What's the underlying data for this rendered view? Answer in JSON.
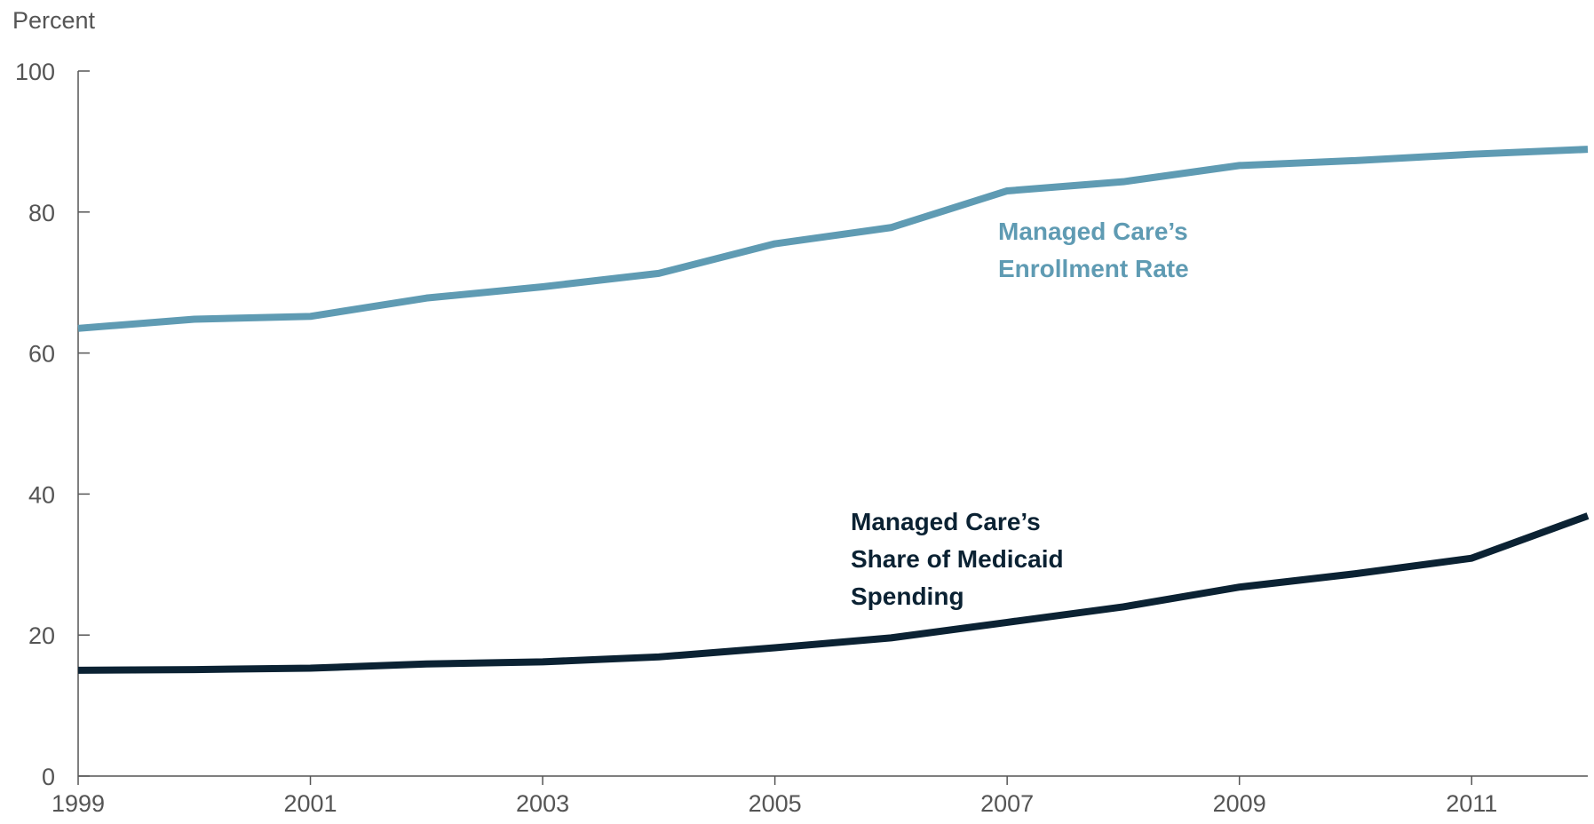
{
  "chart_data": {
    "type": "line",
    "y_label": "Percent",
    "x": [
      1999,
      2000,
      2001,
      2002,
      2003,
      2004,
      2005,
      2006,
      2007,
      2008,
      2009,
      2010,
      2011,
      2012
    ],
    "series": [
      {
        "color": "#5f9bb3",
        "values": [
          63.5,
          64.8,
          65.2,
          67.8,
          69.4,
          71.3,
          75.5,
          77.8,
          83.0,
          84.3,
          86.6,
          87.3,
          88.2,
          88.9
        ]
      },
      {
        "color": "#0b2233",
        "values": [
          15.0,
          15.1,
          15.3,
          15.9,
          16.2,
          16.9,
          18.2,
          19.6,
          21.8,
          24.0,
          26.8,
          28.7,
          30.9,
          36.9
        ]
      }
    ],
    "annotations": [
      {
        "color": "#5f9bb3",
        "lines": [
          "Managed Care’s",
          "Enrollment Rate"
        ]
      },
      {
        "color": "#0b2233",
        "lines": [
          "Managed Care’s",
          "Share of Medicaid",
          "Spending"
        ]
      }
    ],
    "xlim": [
      1999,
      2012
    ],
    "xticks": [
      1999,
      2001,
      2003,
      2005,
      2007,
      2009,
      2011
    ],
    "ylim": [
      0,
      100
    ],
    "yticks": [
      0,
      20,
      40,
      60,
      80,
      100
    ]
  }
}
